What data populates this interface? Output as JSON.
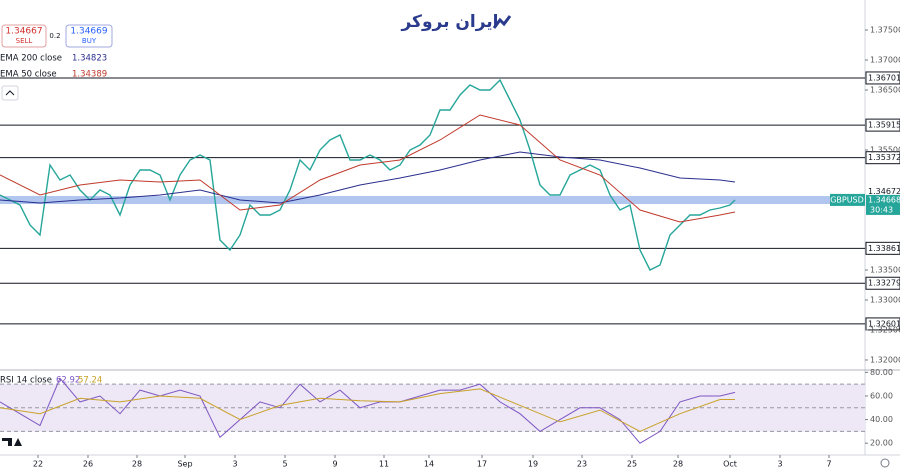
{
  "header": {
    "logo": "ایران بروکر",
    "sell_price": "1.34667",
    "sell_label": "SELL",
    "spread": "0.2",
    "buy_price": "1.34669",
    "buy_label": "BUY"
  },
  "chart_data": [
    {
      "type": "line",
      "symbol": "GBPUSD",
      "countdown": "30:43",
      "xlim": [
        0,
        86.5
      ],
      "ylim": [
        1.31833,
        1.37867
      ],
      "yticks": [
        {
          "value": 1.375,
          "label": "1.37500"
        },
        {
          "value": 1.37,
          "label": "1.37000"
        },
        {
          "value": 1.365,
          "label": "1.36500"
        },
        {
          "value": 1.355,
          "label": "1.35500"
        },
        {
          "value": 1.335,
          "label": "1.33500"
        },
        {
          "value": 1.33,
          "label": "1.33000"
        },
        {
          "value": 1.325,
          "label": "1.32500"
        },
        {
          "value": 1.32,
          "label": "1.32000"
        }
      ],
      "xticks": [
        {
          "value": 3.8,
          "label": "22"
        },
        {
          "value": 8.8,
          "label": "26"
        },
        {
          "value": 13.7,
          "label": "28"
        },
        {
          "value": 18.5,
          "label": "Sep"
        },
        {
          "value": 23.5,
          "label": "3"
        },
        {
          "value": 28.5,
          "label": "5"
        },
        {
          "value": 33.5,
          "label": "9"
        },
        {
          "value": 38.4,
          "label": "11"
        },
        {
          "value": 42.9,
          "label": "14"
        },
        {
          "value": 48.2,
          "label": "17"
        },
        {
          "value": 53.3,
          "label": "19"
        },
        {
          "value": 58.2,
          "label": "23"
        },
        {
          "value": 63.2,
          "label": "25"
        },
        {
          "value": 67.8,
          "label": "28"
        },
        {
          "value": 73,
          "label": "Oct"
        },
        {
          "value": 78,
          "label": "3"
        },
        {
          "value": 82.9,
          "label": "7"
        }
      ],
      "levels": [
        {
          "value": 1.36701,
          "label": "1.36701"
        },
        {
          "value": 1.35915,
          "label": "1.35915"
        },
        {
          "value": 1.35372,
          "label": "1.35372"
        },
        {
          "value": 1.33861,
          "label": "1.33861"
        },
        {
          "value": 1.33279,
          "label": "1.33279"
        },
        {
          "value": 1.32601,
          "label": "1.32601"
        }
      ],
      "zone": [
        1.346,
        1.34733
      ],
      "ask": {
        "value": 1.34672,
        "label": "1.34672"
      },
      "last": {
        "value": 1.34668,
        "label": "1.34668"
      },
      "series": [
        {
          "name": "GBPUSD",
          "color": "#26a69a",
          "x": [
            0,
            1,
            2,
            3,
            4,
            5,
            6,
            7,
            8,
            9,
            10,
            11,
            12,
            13,
            14,
            15,
            16,
            17,
            18,
            19,
            20,
            21,
            22,
            23,
            24,
            25,
            26,
            27,
            28,
            29,
            30,
            31,
            32,
            33,
            34,
            35,
            36,
            37,
            38,
            39,
            40,
            41,
            42,
            43,
            44,
            45,
            46,
            47,
            48,
            49,
            50,
            51,
            52,
            53,
            54,
            55,
            56,
            57,
            58,
            59,
            60,
            61,
            62,
            63,
            64,
            65,
            66,
            67,
            68,
            69,
            70,
            71,
            72,
            73,
            73.5
          ],
          "values": [
            1.3475,
            1.34667,
            1.34583,
            1.3425,
            1.34083,
            1.3525,
            1.35,
            1.35083,
            1.34833,
            1.34667,
            1.34833,
            1.3475,
            1.34417,
            1.34917,
            1.35167,
            1.35167,
            1.35083,
            1.34667,
            1.35083,
            1.35333,
            1.35417,
            1.35333,
            1.34,
            1.33833,
            1.34083,
            1.34583,
            1.34417,
            1.34417,
            1.345,
            1.34833,
            1.35333,
            1.35167,
            1.355,
            1.35667,
            1.3575,
            1.35333,
            1.35333,
            1.35417,
            1.35333,
            1.35167,
            1.3525,
            1.355,
            1.35583,
            1.3575,
            1.36167,
            1.36167,
            1.36417,
            1.36583,
            1.365,
            1.365,
            1.36667,
            1.36333,
            1.36,
            1.355,
            1.34917,
            1.3475,
            1.3475,
            1.35083,
            1.35167,
            1.3525,
            1.35167,
            1.3475,
            1.345,
            1.34583,
            1.33833,
            1.335,
            1.33583,
            1.34083,
            1.3425,
            1.34417,
            1.34417,
            1.345,
            1.34533,
            1.34583,
            1.34667
          ]
        },
        {
          "name": "EMA 200 close",
          "legend_value": "1.34823",
          "color": "#2a2e8f",
          "x": [
            0,
            4,
            8,
            12,
            16,
            20,
            24,
            28,
            32,
            36,
            40,
            44,
            48,
            52,
            56,
            60,
            64,
            68,
            72,
            73.5
          ],
          "values": [
            1.34667,
            1.34617,
            1.34667,
            1.347,
            1.3475,
            1.34833,
            1.34667,
            1.34617,
            1.3475,
            1.34917,
            1.35033,
            1.35167,
            1.35333,
            1.35467,
            1.35383,
            1.35333,
            1.352,
            1.35033,
            1.35,
            1.34967
          ]
        },
        {
          "name": "EMA 50 close",
          "legend_value": "1.34389",
          "color": "#c0392b",
          "x": [
            0,
            4,
            8,
            12,
            16,
            20,
            24,
            28,
            32,
            36,
            40,
            44,
            48,
            52,
            56,
            60,
            64,
            68,
            72,
            73.5
          ],
          "values": [
            1.35083,
            1.3475,
            1.34917,
            1.35,
            1.34967,
            1.35,
            1.345,
            1.34583,
            1.35,
            1.3525,
            1.35333,
            1.35667,
            1.36083,
            1.35917,
            1.35333,
            1.35083,
            1.345,
            1.343,
            1.34417,
            1.34467
          ]
        }
      ]
    },
    {
      "type": "line",
      "xlim": [
        0,
        86.5
      ],
      "ylim": [
        10,
        82
      ],
      "bands": [
        70,
        50,
        30
      ],
      "yticks": [
        {
          "value": 80,
          "label": "80.00"
        },
        {
          "value": 60,
          "label": "60.00"
        },
        {
          "value": 40,
          "label": "40.00"
        },
        {
          "value": 20,
          "label": "20.00"
        }
      ],
      "series": [
        {
          "name": "RSI 14 close",
          "legend_value": "62.92",
          "color": "#7e57c2",
          "x": [
            0,
            2,
            4,
            6,
            8,
            10,
            12,
            14,
            16,
            18,
            20,
            22,
            24,
            26,
            28,
            30,
            32,
            34,
            36,
            38,
            40,
            42,
            44,
            46,
            48,
            50,
            52,
            54,
            56,
            58,
            60,
            62,
            64,
            66,
            68,
            70,
            72,
            73.5
          ],
          "values": [
            55,
            45,
            35,
            75,
            55,
            60,
            45,
            65,
            60,
            65,
            60,
            25,
            40,
            55,
            50,
            70,
            55,
            65,
            50,
            55,
            55,
            60,
            65,
            65,
            70,
            55,
            45,
            30,
            40,
            50,
            50,
            40,
            20,
            30,
            55,
            60,
            60,
            63
          ]
        },
        {
          "name": "",
          "legend_value": "57.24",
          "color": "#c9a227",
          "x": [
            0,
            4,
            8,
            12,
            16,
            20,
            24,
            28,
            32,
            36,
            40,
            44,
            48,
            52,
            56,
            60,
            64,
            68,
            72,
            73.5
          ],
          "values": [
            50,
            45,
            58,
            55,
            60,
            58,
            40,
            52,
            58,
            56,
            55,
            62,
            66,
            52,
            38,
            48,
            30,
            45,
            57,
            57
          ]
        }
      ]
    }
  ]
}
